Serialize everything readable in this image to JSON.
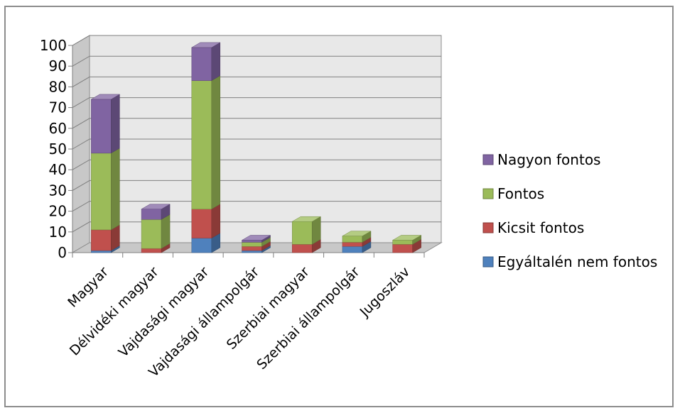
{
  "chart_data": {
    "type": "bar",
    "stacked": true,
    "three_d": true,
    "categories": [
      "Magyar",
      "Délvidéki magyar",
      "Vajdasági magyar",
      "Vajdasági állampolgár",
      "Szerbiai magyar",
      "Szerbiai állampolgár",
      "Jugoszláv"
    ],
    "series": [
      {
        "name": "Egyáltalén nem fontos",
        "color": "#4f81bd",
        "values": [
          1,
          0,
          7,
          1,
          0,
          3,
          0
        ]
      },
      {
        "name": "Kicsit fontos",
        "color": "#c0504d",
        "values": [
          10,
          2,
          14,
          2,
          4,
          2,
          4
        ]
      },
      {
        "name": "Fontos",
        "color": "#9bbb59",
        "values": [
          37,
          14,
          62,
          2,
          11,
          3,
          2
        ]
      },
      {
        "name": "Nagyon fontos",
        "color": "#8064a2",
        "values": [
          26,
          5,
          16,
          1,
          0,
          0,
          0
        ]
      }
    ],
    "title": "",
    "xlabel": "",
    "ylabel": "",
    "ylim": [
      0,
      100
    ],
    "yticks": [
      "0",
      "10",
      "20",
      "30",
      "40",
      "50",
      "60",
      "70",
      "80",
      "90",
      "100"
    ],
    "grid": true,
    "legend_position": "right"
  }
}
